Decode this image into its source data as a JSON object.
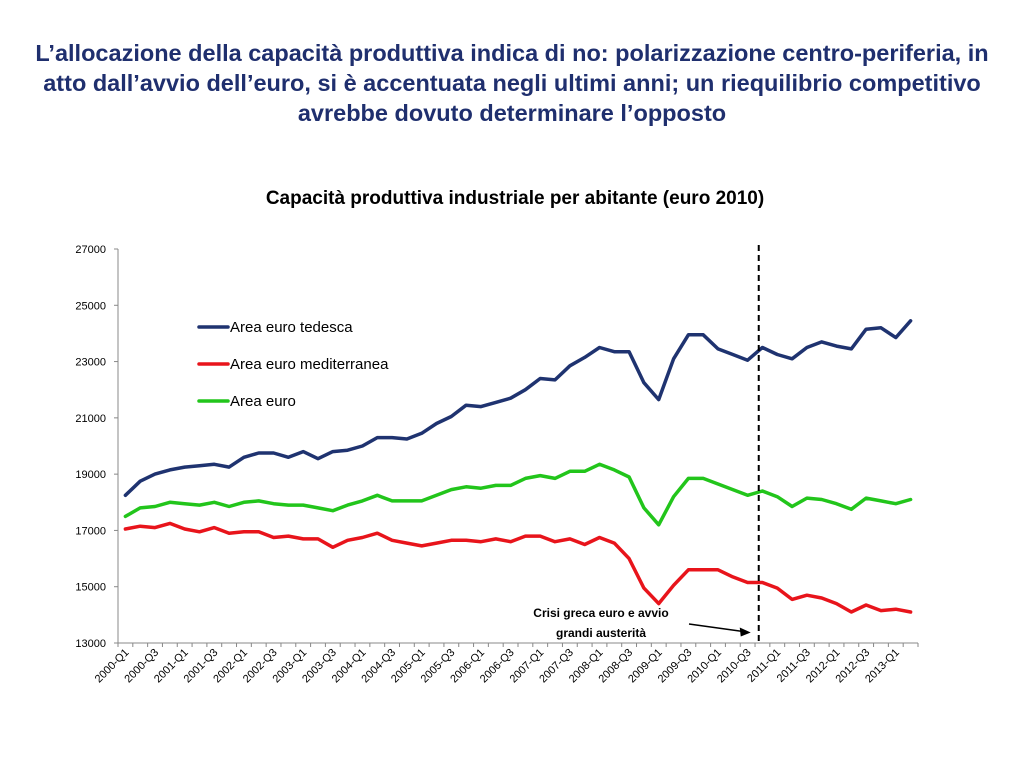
{
  "slide": {
    "title": "L’allocazione della capacità produttiva indica di no: polarizzazione centro-periferia, in atto dall’avvio dell’euro, si è accentuata negli ultimi anni; un riequilibrio competitivo avrebbe dovuto determinare l’opposto"
  },
  "colors": {
    "tedesca": "#1f3370",
    "mediterranea": "#e8141b",
    "euro": "#22c51b",
    "axis": "#888888",
    "marker": "#000000"
  },
  "chart_data": {
    "type": "line",
    "title": "Capacità produttiva industriale per abitante (euro 2010)",
    "xlabel": "",
    "ylabel": "",
    "ylim": [
      13000,
      27000
    ],
    "yticks": [
      13000,
      15000,
      17000,
      19000,
      21000,
      23000,
      25000,
      27000
    ],
    "x": [
      "2000-Q1",
      "2000-Q2",
      "2000-Q3",
      "2000-Q4",
      "2001-Q1",
      "2001-Q2",
      "2001-Q3",
      "2001-Q4",
      "2002-Q1",
      "2002-Q2",
      "2002-Q3",
      "2002-Q4",
      "2003-Q1",
      "2003-Q2",
      "2003-Q3",
      "2003-Q4",
      "2004-Q1",
      "2004-Q2",
      "2004-Q3",
      "2004-Q4",
      "2005-Q1",
      "2005-Q2",
      "2005-Q3",
      "2005-Q4",
      "2006-Q1",
      "2006-Q2",
      "2006-Q3",
      "2006-Q4",
      "2007-Q1",
      "2007-Q2",
      "2007-Q3",
      "2007-Q4",
      "2008-Q1",
      "2008-Q2",
      "2008-Q3",
      "2008-Q4",
      "2009-Q1",
      "2009-Q2",
      "2009-Q3",
      "2009-Q4",
      "2010-Q1",
      "2010-Q2",
      "2010-Q3",
      "2010-Q4",
      "2011-Q1",
      "2011-Q2",
      "2011-Q3",
      "2011-Q4",
      "2012-Q1",
      "2012-Q2",
      "2012-Q3",
      "2012-Q4",
      "2013-Q1",
      "2013-Q2"
    ],
    "xtick_labels": [
      "2000-Q1",
      "2000-Q3",
      "2001-Q1",
      "2001-Q3",
      "2002-Q1",
      "2002-Q3",
      "2003-Q1",
      "2003-Q3",
      "2004-Q1",
      "2004-Q3",
      "2005-Q1",
      "2005-Q3",
      "2006-Q1",
      "2006-Q3",
      "2007-Q1",
      "2007-Q3",
      "2008-Q1",
      "2008-Q3",
      "2009-Q1",
      "2009-Q3",
      "2010-Q1",
      "2010-Q3",
      "2011-Q1",
      "2011-Q3",
      "2012-Q1",
      "2012-Q3",
      "2013-Q1"
    ],
    "series": [
      {
        "name": "Area euro tedesca",
        "key": "tedesca",
        "values": [
          18250,
          18750,
          19000,
          19150,
          19250,
          19300,
          19350,
          19250,
          19600,
          19750,
          19750,
          19600,
          19800,
          19550,
          19800,
          19850,
          20000,
          20300,
          20300,
          20250,
          20450,
          20800,
          21050,
          21450,
          21400,
          21550,
          21700,
          22000,
          22400,
          22350,
          22850,
          23150,
          23500,
          23350,
          23350,
          22250,
          21650,
          23100,
          23950,
          23950,
          23450,
          23250,
          23050,
          23500,
          23250,
          23100,
          23500,
          23700,
          23550,
          23450,
          24150,
          24200,
          23850,
          24450
        ]
      },
      {
        "name": "Area euro mediterranea",
        "key": "mediterranea",
        "values": [
          17050,
          17150,
          17100,
          17250,
          17050,
          16950,
          17100,
          16900,
          16950,
          16950,
          16750,
          16800,
          16700,
          16700,
          16400,
          16650,
          16750,
          16900,
          16650,
          16550,
          16450,
          16550,
          16650,
          16650,
          16600,
          16700,
          16600,
          16800,
          16800,
          16600,
          16700,
          16500,
          16750,
          16550,
          16000,
          14950,
          14400,
          15050,
          15600,
          15600,
          15600,
          15350,
          15150,
          15150,
          14950,
          14550,
          14700,
          14600,
          14400,
          14100,
          14350,
          14150,
          14200,
          14100
        ]
      },
      {
        "name": "Area euro",
        "key": "euro",
        "values": [
          17500,
          17800,
          17850,
          18000,
          17950,
          17900,
          18000,
          17850,
          18000,
          18050,
          17950,
          17900,
          17900,
          17800,
          17700,
          17900,
          18050,
          18250,
          18050,
          18050,
          18050,
          18250,
          18450,
          18550,
          18500,
          18600,
          18600,
          18850,
          18950,
          18850,
          19100,
          19100,
          19350,
          19150,
          18900,
          17800,
          17200,
          18200,
          18850,
          18850,
          18650,
          18450,
          18250,
          18400,
          18200,
          17850,
          18150,
          18100,
          17950,
          17750,
          18150,
          18050,
          17950,
          18100
        ]
      }
    ],
    "legend_position": "top-left",
    "grid": false,
    "vertical_marker": {
      "x": "2010-Q4",
      "style": "dashed"
    },
    "annotation": {
      "text_line1": "Crisi  greca euro e avvio",
      "text_line2": "grandi austerità",
      "arrow_to": "2010-Q4"
    }
  }
}
